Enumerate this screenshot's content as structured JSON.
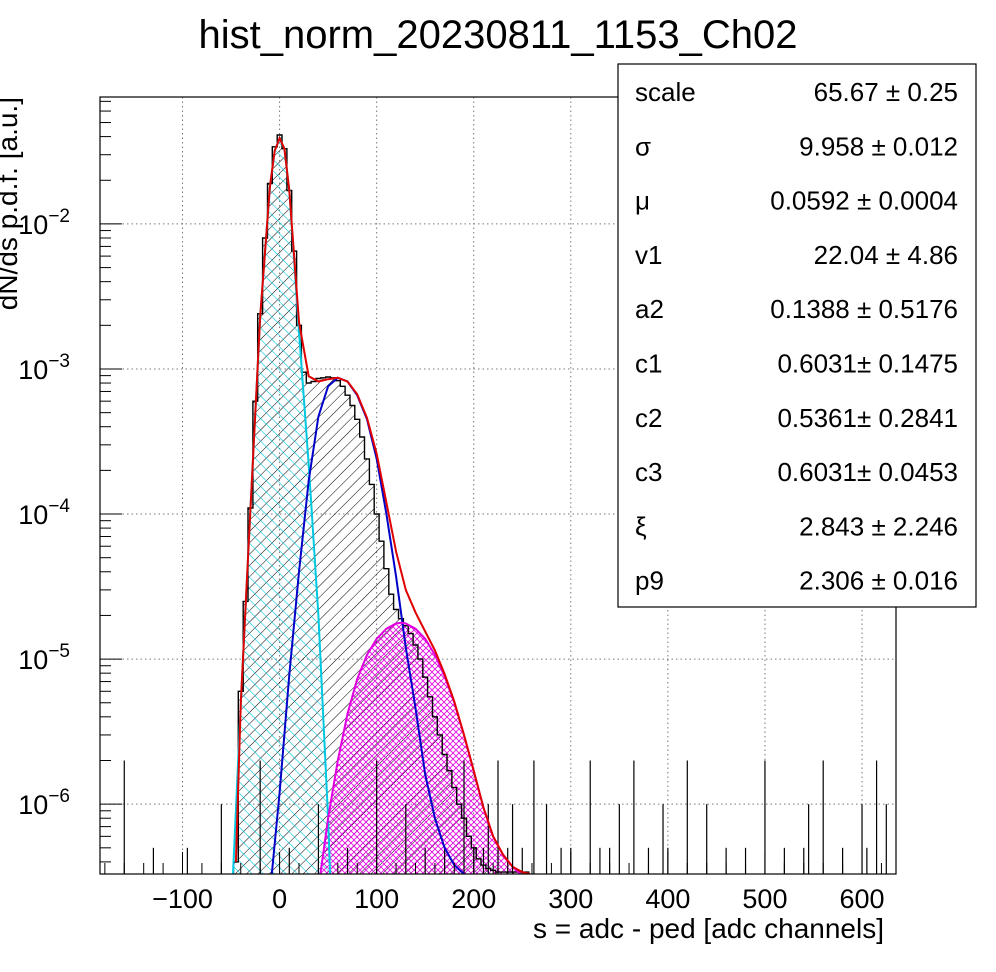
{
  "chart_data": {
    "type": "line",
    "title": "hist_norm_20230811_1153_Ch02",
    "xlabel": "s = adc - ped [adc channels]",
    "ylabel": "dN/ds p.d.f. [a.u.]",
    "xlim": [
      -185,
      635
    ],
    "ylim": [
      3.3e-07,
      0.075
    ],
    "y_scale": "log",
    "grid": true,
    "x_ticks": [
      {
        "value": -100,
        "label": "−100"
      },
      {
        "value": 0,
        "label": "0"
      },
      {
        "value": 100,
        "label": "100"
      },
      {
        "value": 200,
        "label": "200"
      },
      {
        "value": 300,
        "label": "300"
      },
      {
        "value": 400,
        "label": "400"
      },
      {
        "value": 500,
        "label": "500"
      },
      {
        "value": 600,
        "label": "600"
      }
    ],
    "y_ticks": [
      {
        "value": 1e-06,
        "base": "10",
        "exp": "−6"
      },
      {
        "value": 1e-05,
        "base": "10",
        "exp": "−5"
      },
      {
        "value": 0.0001,
        "base": "10",
        "exp": "−4"
      },
      {
        "value": 0.001,
        "base": "10",
        "exp": "−3"
      },
      {
        "value": 0.01,
        "base": "10",
        "exp": "−2"
      }
    ],
    "histogram": {
      "color": "#000000",
      "x": [
        -45,
        -40,
        -35,
        -30,
        -25,
        -20,
        -15,
        -10,
        -5,
        0,
        5,
        10,
        15,
        20,
        25,
        30,
        35,
        40,
        45,
        50,
        55,
        60,
        65,
        70,
        75,
        80,
        85,
        90,
        95,
        100,
        105,
        110,
        115,
        120,
        125,
        130,
        135,
        140,
        145,
        150,
        155,
        160,
        165,
        170,
        175,
        180,
        185,
        190,
        195,
        200,
        205,
        210,
        215,
        220,
        225,
        230,
        235,
        240,
        245,
        250,
        255
      ],
      "y": [
        4e-07,
        6e-06,
        2.5e-05,
        0.00011,
        0.0006,
        0.0024,
        0.008,
        0.019,
        0.034,
        0.041,
        0.033,
        0.017,
        0.0065,
        0.002,
        0.00095,
        0.0008,
        0.00082,
        0.00086,
        0.00087,
        0.00088,
        0.00087,
        0.00083,
        0.00076,
        0.00066,
        0.00056,
        0.00045,
        0.00034,
        0.00024,
        0.00016,
        0.0001,
        6.5e-05,
        4.2e-05,
        2.8e-05,
        2.2e-05,
        1.9e-05,
        1.7e-05,
        1.5e-05,
        1.25e-05,
        1e-05,
        7.5e-06,
        5.5e-06,
        4e-06,
        3e-06,
        2.2e-06,
        1.7e-06,
        1.3e-06,
        1e-06,
        8e-07,
        6e-07,
        5e-07,
        4.2e-07,
        3.8e-07,
        3.6e-07,
        3.5e-07,
        3.4e-07,
        3.4e-07,
        3.4e-07,
        3.4e-07,
        3.4e-07,
        3.4e-07,
        3.4e-07
      ]
    },
    "series": [
      {
        "color": "#00c8e0",
        "fill": "cyan-hatch",
        "x": [
          -48,
          -40,
          -30,
          -20,
          -10,
          -5,
          0,
          5,
          10,
          20,
          30,
          40,
          50,
          52
        ],
        "y": [
          3.3e-07,
          5e-06,
          0.00011,
          0.0023,
          0.018,
          0.032,
          0.039,
          0.033,
          0.017,
          0.0018,
          0.00022,
          2e-05,
          8e-07,
          3.3e-07
        ]
      },
      {
        "color": "#0000c8",
        "fill": "black-hatch",
        "x": [
          -8,
          0,
          10,
          20,
          30,
          40,
          50,
          60,
          70,
          80,
          90,
          100,
          110,
          120,
          130,
          140,
          150,
          160,
          170,
          180,
          190
        ],
        "y": [
          3.3e-07,
          1.2e-06,
          7.8e-06,
          4e-05,
          0.00017,
          0.00047,
          0.00076,
          0.00087,
          0.00082,
          0.00066,
          0.00045,
          0.00024,
          0.0001,
          3.7e-05,
          1.2e-05,
          4.6e-06,
          1.6e-06,
          8e-07,
          5e-07,
          3.8e-07,
          3.3e-07
        ]
      },
      {
        "color": "#e000e0",
        "fill": "magenta-hatch",
        "x": [
          42,
          50,
          60,
          70,
          80,
          90,
          100,
          110,
          120,
          125,
          130,
          140,
          150,
          160,
          170,
          180,
          190,
          200,
          210,
          220,
          230,
          240,
          248
        ],
        "y": [
          3.3e-07,
          8e-07,
          2e-06,
          4.2e-06,
          7.3e-06,
          1.07e-05,
          1.38e-05,
          1.62e-05,
          1.76e-05,
          1.78e-05,
          1.76e-05,
          1.62e-05,
          1.38e-05,
          1.07e-05,
          7.6e-06,
          5e-06,
          3e-06,
          1.7e-06,
          9.5e-07,
          6e-07,
          4.5e-07,
          3.7e-07,
          3.3e-07
        ]
      },
      {
        "color": "#e00000",
        "fill": "none",
        "x": [
          -45,
          -40,
          -30,
          -20,
          -10,
          -5,
          0,
          5,
          10,
          20,
          30,
          40,
          50,
          60,
          70,
          80,
          90,
          100,
          110,
          120,
          130,
          140,
          150,
          160,
          170,
          180,
          190,
          200,
          210,
          220,
          230,
          240,
          250,
          258
        ],
        "y": [
          4e-07,
          5e-06,
          0.00011,
          0.0023,
          0.018,
          0.032,
          0.039,
          0.033,
          0.017,
          0.0021,
          0.00089,
          0.00082,
          0.00085,
          0.00087,
          0.00082,
          0.00067,
          0.00046,
          0.00026,
          0.00012,
          5.5e-05,
          3e-05,
          2.1e-05,
          1.55e-05,
          1.15e-05,
          7.9e-06,
          5.1e-06,
          3e-06,
          1.7e-06,
          9.5e-07,
          6e-07,
          4.5e-07,
          3.7e-07,
          3.4e-07,
          3.3e-07
        ]
      }
    ],
    "stats_box": [
      {
        "name": "scale",
        "value": "65.67 ± 0.25"
      },
      {
        "name": "σ",
        "value": "9.958 ± 0.012"
      },
      {
        "name": "μ",
        "value": "0.0592 ± 0.0004"
      },
      {
        "name": "v1",
        "value": "22.04 ± 4.86"
      },
      {
        "name": "a2",
        "value": "0.1388 ± 0.5176"
      },
      {
        "name": "c1",
        "value": "0.6031± 0.1475"
      },
      {
        "name": "c2",
        "value": "0.5361± 0.2841"
      },
      {
        "name": "c3",
        "value": "0.6031± 0.0453"
      },
      {
        "name": "ξ",
        "value": "2.843 ± 2.246"
      },
      {
        "name": "p9",
        "value": "2.306 ± 0.016"
      }
    ]
  }
}
